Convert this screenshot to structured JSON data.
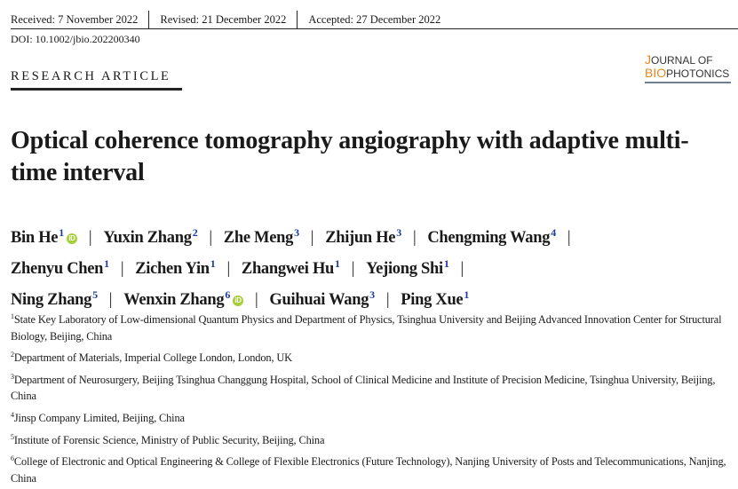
{
  "history": {
    "received": "Received: 7 November 2022",
    "revised": "Revised: 21 December 2022",
    "accepted": "Accepted: 27 December 2022"
  },
  "doi": "DOI: 10.1002/jbio.202200340",
  "article_type": "RESEARCH ARTICLE",
  "journal_logo": {
    "line1_initial": "J",
    "line1_rest": "OURNAL OF",
    "line2_initial": "BIO",
    "line2_rest": "PHOTONICS",
    "accent": "#e5891f"
  },
  "title": "Optical coherence tomography angiography with adaptive multi-time interval",
  "author_lines": [
    [
      {
        "name": "Bin He",
        "aff": "1",
        "orcid": true
      },
      {
        "name": "Yuxin Zhang",
        "aff": "2"
      },
      {
        "name": "Zhe Meng",
        "aff": "3"
      },
      {
        "name": "Zhijun He",
        "aff": "3"
      },
      {
        "name": "Chengming Wang",
        "aff": "4"
      }
    ],
    [
      {
        "name": "Zhenyu Chen",
        "aff": "1"
      },
      {
        "name": "Zichen Yin",
        "aff": "1"
      },
      {
        "name": "Zhangwei Hu",
        "aff": "1"
      },
      {
        "name": "Yejiong Shi",
        "aff": "1"
      }
    ],
    [
      {
        "name": "Ning Zhang",
        "aff": "5"
      },
      {
        "name": "Wenxin Zhang",
        "aff": "6",
        "orcid": true
      },
      {
        "name": "Guihuai Wang",
        "aff": "3"
      },
      {
        "name": "Ping Xue",
        "aff": "1"
      }
    ]
  ],
  "separator": "|",
  "orcid_icon": "iD",
  "affiliations": [
    {
      "num": "1",
      "text": "State Key Laboratory of Low-dimensional Quantum Physics and Department of Physics, Tsinghua University and Beijing Advanced Innovation Center for Structural Biology, Beijing, China"
    },
    {
      "num": "2",
      "text": "Department of Materials, Imperial College London, London, UK"
    },
    {
      "num": "3",
      "text": "Department of Neurosurgery, Beijing Tsinghua Changgung Hospital, School of Clinical Medicine and Institute of Precision Medicine, Tsinghua University, Beijing, China"
    },
    {
      "num": "4",
      "text": "Jinsp Company Limited, Beijing, China"
    },
    {
      "num": "5",
      "text": "Institute of Forensic Science, Ministry of Public Security, Beijing, China"
    },
    {
      "num": "6",
      "text": "College of Electronic and Optical Engineering & College of Flexible Electronics (Future Technology), Nanjing University of Posts and Telecommunications, Nanjing, China"
    }
  ]
}
